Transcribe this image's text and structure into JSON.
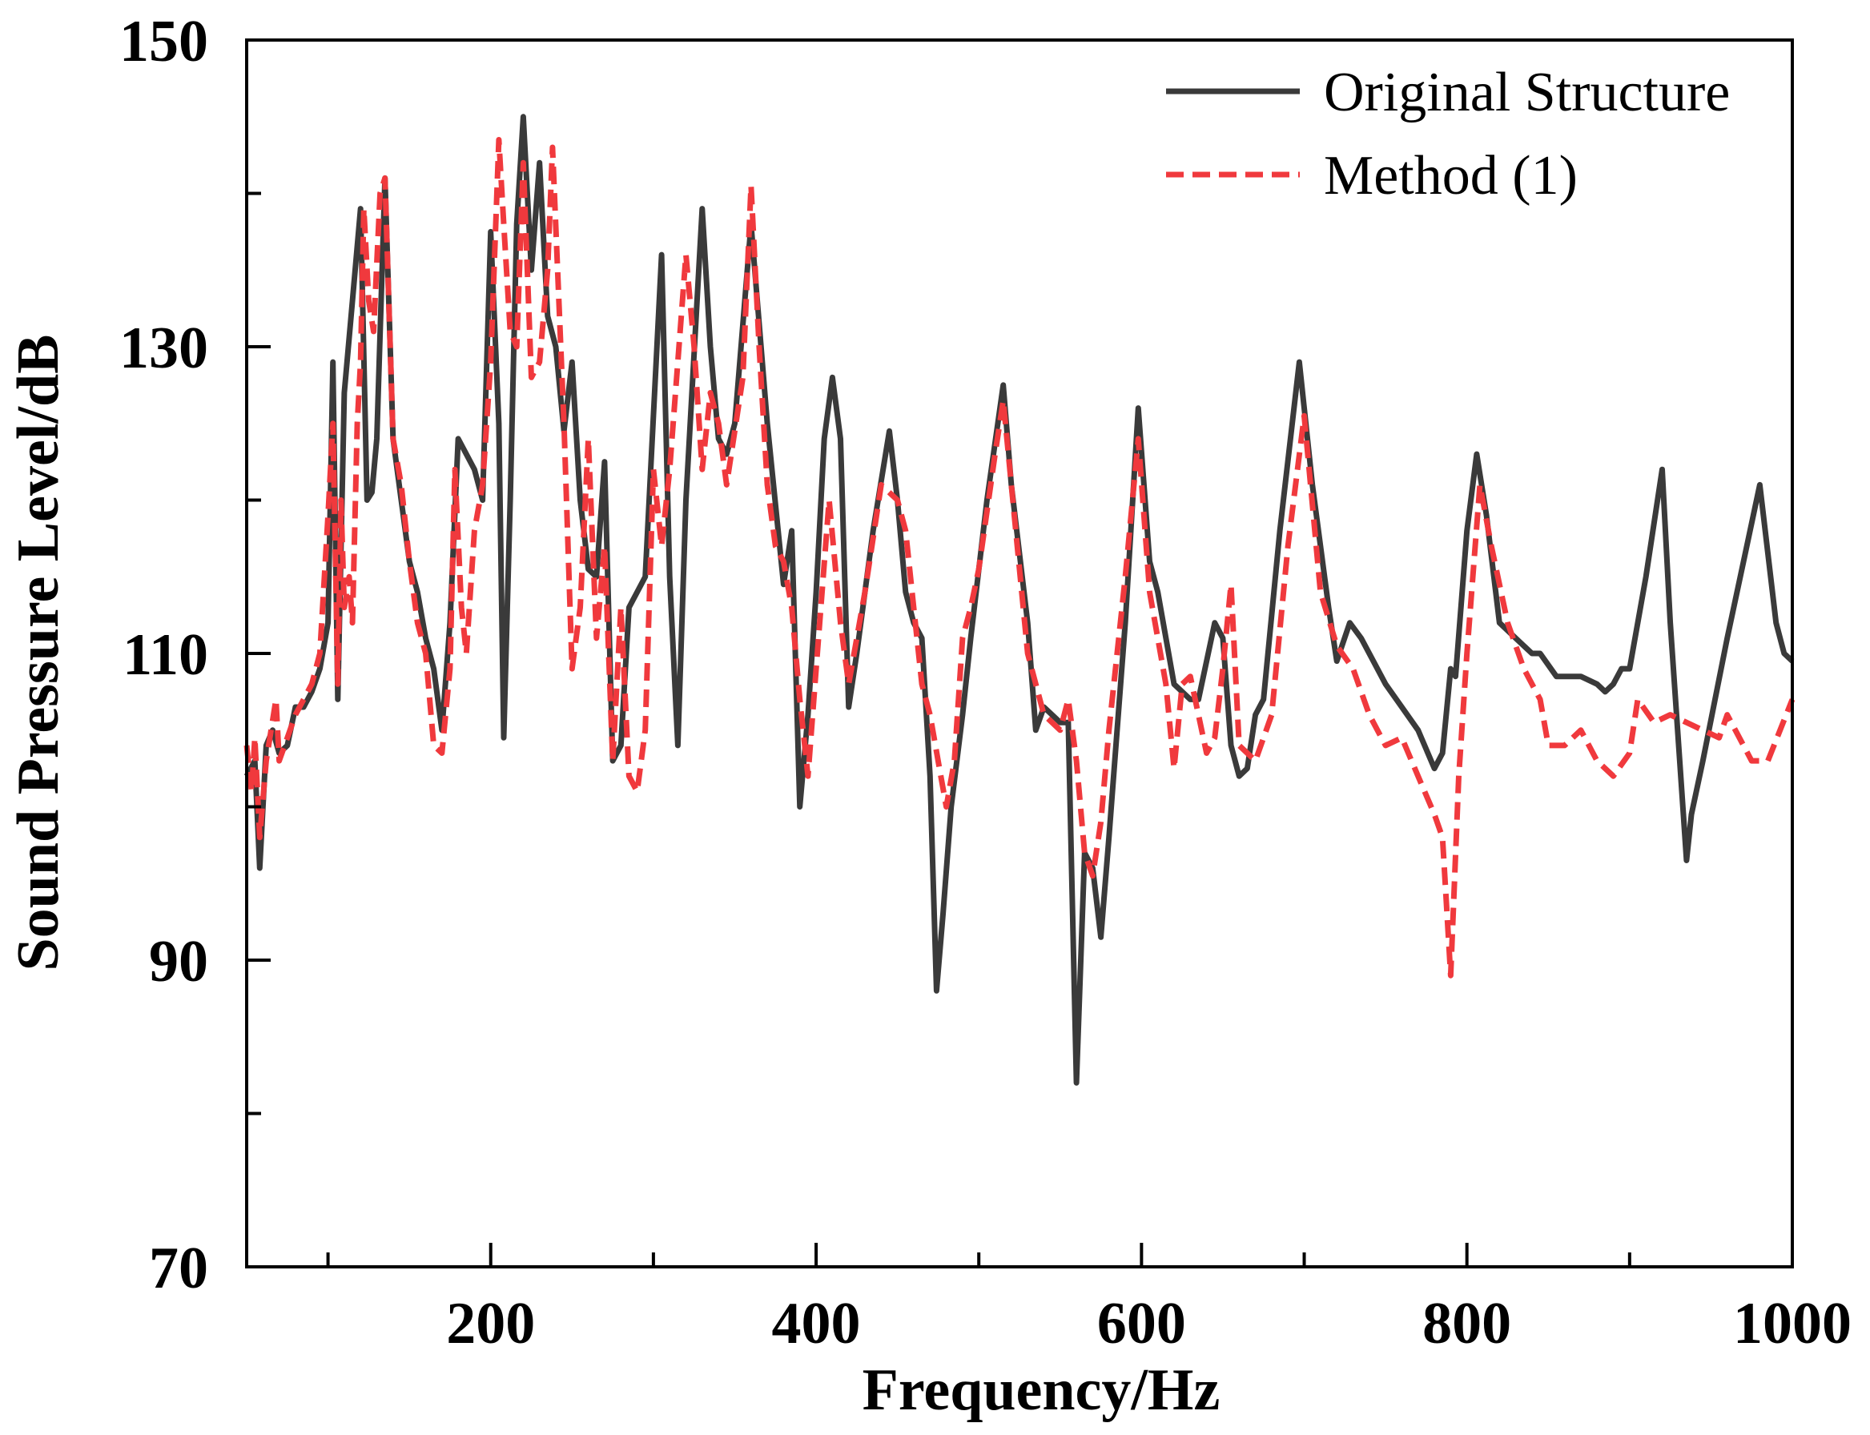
{
  "chart_data": {
    "type": "line",
    "xlabel": "Frequency/Hz",
    "ylabel": "Sound Pressure Level/dB",
    "xlim": [
      50,
      1000
    ],
    "xticks": [
      200,
      400,
      600,
      800,
      1000
    ],
    "xminor_ticks": [
      100,
      300,
      500,
      700,
      900
    ],
    "ylim": [
      70,
      150
    ],
    "yticks": [
      70,
      90,
      110,
      130,
      150
    ],
    "yminor_ticks": [
      80,
      100,
      120,
      140
    ],
    "legend": "upper right",
    "series": [
      {
        "name": "Original Structure",
        "color": "#3a3a3a",
        "dash": "solid",
        "x": [
          50,
          55,
          58,
          62,
          66,
          70,
          75,
          80,
          85,
          90,
          95,
          100,
          103,
          106,
          110,
          115,
          120,
          124,
          127,
          130,
          135,
          140,
          145,
          150,
          155,
          160,
          165,
          170,
          175,
          180,
          185,
          190,
          195,
          200,
          205,
          208,
          212,
          216,
          220,
          225,
          230,
          235,
          240,
          245,
          250,
          255,
          260,
          265,
          270,
          275,
          280,
          285,
          290,
          295,
          305,
          310,
          315,
          320,
          330,
          335,
          340,
          345,
          350,
          360,
          370,
          380,
          385,
          390,
          395,
          400,
          405,
          410,
          415,
          420,
          425,
          435,
          445,
          450,
          455,
          460,
          465,
          470,
          474,
          478,
          483,
          490,
          495,
          505,
          515,
          520,
          530,
          535,
          540,
          550,
          555,
          560,
          565,
          570,
          575,
          580,
          590,
          598,
          605,
          610,
          620,
          630,
          635,
          645,
          650,
          655,
          660,
          665,
          670,
          675,
          685,
          697,
          705,
          715,
          720,
          728,
          735,
          750,
          760,
          770,
          780,
          785,
          790,
          793,
          800,
          806,
          812,
          820,
          830,
          840,
          845,
          855,
          860,
          870,
          880,
          885,
          890,
          895,
          900,
          910,
          920,
          925,
          935,
          938,
          945,
          960,
          970,
          980,
          990,
          995,
          1000
        ],
        "values": [
          102,
          103,
          96,
          104,
          105,
          103.5,
          104,
          106.5,
          106.5,
          107.5,
          109,
          112,
          129,
          107,
          127,
          133,
          139,
          120,
          120.5,
          124,
          141,
          124,
          120,
          116,
          114,
          111,
          109,
          105,
          112,
          124,
          123,
          122,
          120,
          137.5,
          125,
          104.5,
          120,
          138,
          145,
          135,
          142,
          132,
          130,
          124.5,
          129,
          120,
          115.5,
          115,
          122.5,
          103,
          104,
          113,
          114,
          115,
          136,
          115,
          104,
          120,
          139,
          130,
          124,
          123,
          125,
          138,
          125,
          114.5,
          118,
          100,
          106,
          114,
          124,
          128,
          124,
          106.5,
          110,
          118,
          124.5,
          120,
          114,
          112,
          111,
          102,
          88,
          93,
          100,
          106,
          111,
          120,
          127.5,
          121,
          112,
          105,
          106.5,
          105.5,
          105.5,
          82,
          97,
          96,
          91.5,
          98,
          112,
          126,
          116,
          114,
          108,
          107,
          107,
          112,
          111,
          104,
          102,
          102.5,
          106,
          107,
          118,
          129,
          121,
          113,
          109.5,
          112,
          111,
          108,
          106.5,
          105,
          102.5,
          103.5,
          109,
          108.5,
          118,
          123,
          119,
          112,
          111,
          110,
          110,
          108.5,
          108.5,
          108.5,
          108,
          107.5,
          108,
          109,
          109,
          115,
          122,
          112,
          96.5,
          99.5,
          103,
          111,
          116,
          121,
          112,
          110,
          109.5
        ]
      },
      {
        "name": "Method (1)",
        "color": "#f0393d",
        "dash": "dashed",
        "x": [
          50,
          53,
          55,
          58,
          62,
          68,
          70,
          75,
          80,
          90,
          95,
          100,
          103,
          106,
          108,
          110,
          113,
          115,
          118,
          120,
          122,
          125,
          128,
          132,
          135,
          140,
          145,
          150,
          155,
          160,
          165,
          170,
          175,
          178,
          182,
          185,
          190,
          195,
          200,
          205,
          208,
          212,
          216,
          220,
          225,
          230,
          235,
          238,
          245,
          250,
          255,
          260,
          265,
          270,
          275,
          280,
          285,
          290,
          295,
          300,
          305,
          310,
          320,
          325,
          330,
          335,
          340,
          345,
          355,
          360,
          365,
          370,
          375,
          380,
          385,
          390,
          395,
          400,
          408,
          415,
          420,
          430,
          440,
          450,
          455,
          460,
          465,
          470,
          475,
          480,
          485,
          490,
          495,
          500,
          510,
          515,
          520,
          530,
          540,
          550,
          555,
          560,
          565,
          570,
          575,
          580,
          590,
          598,
          605,
          615,
          620,
          625,
          630,
          640,
          645,
          650,
          655,
          660,
          670,
          680,
          690,
          700,
          710,
          720,
          730,
          740,
          750,
          760,
          770,
          780,
          785,
          790,
          795,
          800,
          808,
          815,
          825,
          835,
          845,
          850,
          860,
          870,
          880,
          890,
          900,
          905,
          915,
          925,
          935,
          945,
          955,
          960,
          975,
          985,
          1000
        ],
        "values": [
          104,
          101,
          104.5,
          98,
          103,
          107,
          103,
          104.5,
          106,
          108,
          110,
          119,
          125,
          108,
          120,
          113,
          115,
          112,
          125,
          129,
          139,
          133,
          131,
          140,
          141,
          124,
          121,
          116,
          112,
          110,
          104,
          103.5,
          109,
          122,
          113,
          110,
          118,
          121,
          129,
          143.5,
          138,
          131,
          130,
          142,
          128,
          129,
          135,
          143,
          125,
          109,
          113,
          124,
          111,
          117,
          103,
          113,
          102,
          101,
          105,
          122,
          117,
          122,
          136,
          130,
          122,
          127,
          125,
          121,
          128,
          140.5,
          130,
          121,
          117,
          116,
          113,
          107,
          102,
          109,
          120,
          112,
          108,
          114,
          121,
          120,
          118,
          113,
          108,
          106,
          103,
          100,
          103,
          111,
          113,
          115.5,
          123,
          126.5,
          121,
          110,
          106,
          105,
          107,
          103,
          97,
          95.5,
          99,
          105,
          115,
          124,
          114,
          108,
          102.5,
          108,
          108.5,
          103.5,
          104.5,
          109,
          114.5,
          104,
          103,
          106,
          117,
          125.5,
          114,
          110.5,
          109,
          106,
          104,
          104.5,
          102,
          99.5,
          98,
          89,
          102,
          110,
          121,
          117,
          112,
          109,
          107,
          104,
          104,
          105,
          103,
          102,
          103.5,
          107,
          105.5,
          106,
          105.5,
          105,
          104.5,
          106,
          103,
          103,
          107
        ]
      }
    ]
  }
}
